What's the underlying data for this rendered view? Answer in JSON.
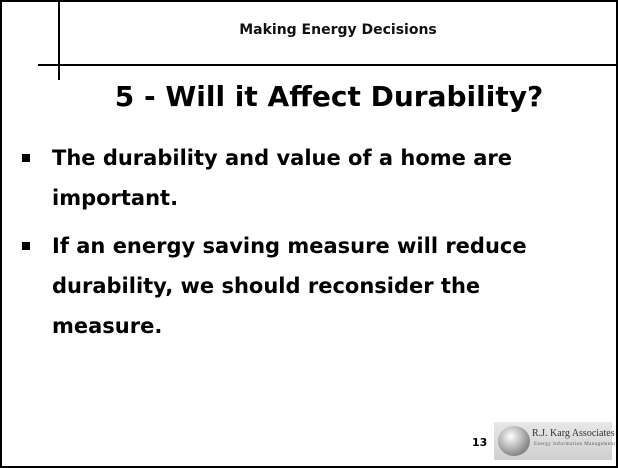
{
  "header": {
    "title": "Making Energy Decisions"
  },
  "title": "5 - Will it Affect Durability?",
  "bullets": [
    "The durability and value of a home are important.",
    "If an energy saving measure will reduce durability, we should reconsider the measure."
  ],
  "footer": {
    "page": "13",
    "logo_name": "R.J. Karg Associates",
    "logo_tagline": "Energy Information Management"
  }
}
